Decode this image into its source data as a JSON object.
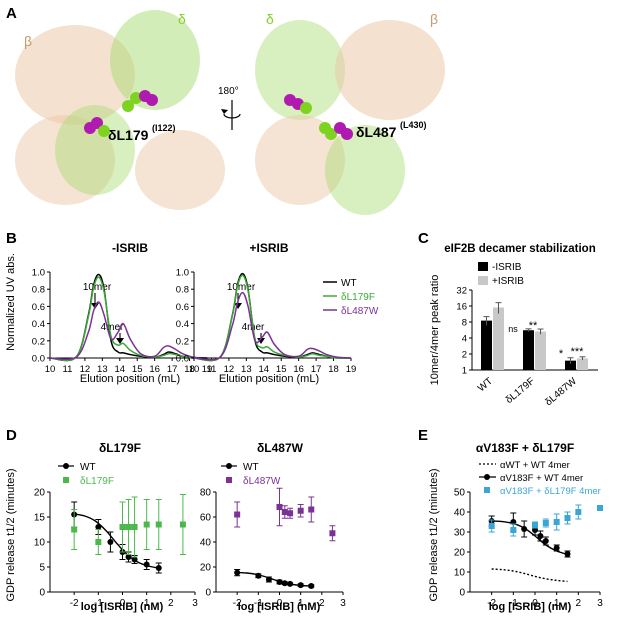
{
  "panels": {
    "A": "A",
    "B": "B",
    "C": "C",
    "D": "D",
    "E": "E"
  },
  "structure": {
    "left_beta": "β",
    "left_delta": "δ",
    "left_mut": "δL179",
    "left_mut_sup": "(I122)",
    "rotation": "180°",
    "right_delta": "δ",
    "right_beta": "β",
    "right_mut": "δL487",
    "right_mut_sup": "(L430)",
    "colors": {
      "beta": "#ebc9a8",
      "delta": "#a8db72",
      "sphere_green": "#7ed321",
      "sphere_purple": "#b01ab0"
    }
  },
  "chart_data": [
    {
      "id": "B-left",
      "type": "line",
      "title": "-ISRIB",
      "xlabel": "Elution position (mL)",
      "ylabel": "Normalized UV abs.",
      "xlim": [
        10,
        19
      ],
      "ylim": [
        0,
        1.0
      ],
      "xticks": [
        "10",
        "11",
        "12",
        "13",
        "14",
        "15",
        "16",
        "17",
        "18",
        "19"
      ],
      "yticks": [
        "0.0",
        "0.2",
        "0.4",
        "0.6",
        "0.8",
        "1.0"
      ],
      "annotations": [
        "10mer",
        "4mer"
      ],
      "series": [
        {
          "name": "WT",
          "color": "#000000",
          "x": [
            10,
            11.5,
            12.2,
            12.5,
            12.8,
            13.1,
            13.5,
            13.9,
            14.2,
            14.6,
            15.2,
            16.0,
            16.5,
            16.8,
            17.2,
            17.6,
            18.2,
            19
          ],
          "y": [
            0,
            0.01,
            0.5,
            0.85,
            0.97,
            0.8,
            0.2,
            0.07,
            0.06,
            0.04,
            0.02,
            0.01,
            0.04,
            0.07,
            0.05,
            0.02,
            0.0,
            0
          ]
        },
        {
          "name": "δL179F",
          "color": "#3aaa35",
          "x": [
            10,
            11.5,
            12.2,
            12.5,
            12.8,
            13.1,
            13.5,
            13.9,
            14.2,
            14.6,
            15.2,
            16.0,
            16.5,
            16.8,
            17.2,
            17.6,
            18.2,
            19
          ],
          "y": [
            0,
            0.01,
            0.48,
            0.82,
            0.94,
            0.77,
            0.25,
            0.15,
            0.17,
            0.09,
            0.03,
            0.01,
            0.03,
            0.05,
            0.04,
            0.02,
            0.0,
            0
          ]
        },
        {
          "name": "δL487W",
          "color": "#7b3294",
          "x": [
            10,
            11.5,
            12.2,
            12.5,
            12.8,
            13.1,
            13.5,
            13.9,
            14.2,
            14.6,
            15.2,
            16.0,
            16.5,
            16.8,
            17.2,
            17.6,
            18.2,
            19
          ],
          "y": [
            0,
            0.01,
            0.3,
            0.55,
            0.65,
            0.5,
            0.22,
            0.3,
            0.4,
            0.22,
            0.05,
            0.02,
            0.12,
            0.14,
            0.1,
            0.05,
            0.01,
            0
          ]
        }
      ]
    },
    {
      "id": "B-right",
      "type": "line",
      "title": "+ISRIB",
      "xlabel": "Elution position (mL)",
      "ylabel": "",
      "xlim": [
        10,
        19
      ],
      "ylim": [
        0,
        1.0
      ],
      "xticks": [
        "10",
        "11",
        "12",
        "13",
        "14",
        "15",
        "16",
        "17",
        "18",
        "19"
      ],
      "yticks": [
        "0.0",
        "0.2",
        "0.4",
        "0.6",
        "0.8",
        "1.0"
      ],
      "annotations": [
        "10mer",
        "4mer"
      ],
      "legend": [
        "WT",
        "δL179F",
        "δL487W"
      ],
      "series": [
        {
          "name": "WT",
          "color": "#000000",
          "x": [
            10,
            11.5,
            12.2,
            12.5,
            12.8,
            13.1,
            13.5,
            13.9,
            14.2,
            14.6,
            15.2,
            16.0,
            16.5,
            16.8,
            17.2,
            17.6,
            18.2,
            19
          ],
          "y": [
            0,
            0.01,
            0.5,
            0.86,
            0.98,
            0.8,
            0.2,
            0.07,
            0.06,
            0.04,
            0.02,
            0.01,
            0.04,
            0.06,
            0.04,
            0.02,
            0.0,
            0
          ]
        },
        {
          "name": "δL179F",
          "color": "#3aaa35",
          "x": [
            10,
            11.5,
            12.2,
            12.5,
            12.8,
            13.1,
            13.5,
            13.9,
            14.2,
            14.6,
            15.2,
            16.0,
            16.5,
            16.8,
            17.2,
            17.6,
            18.2,
            19
          ],
          "y": [
            0,
            0.01,
            0.49,
            0.84,
            0.96,
            0.78,
            0.22,
            0.12,
            0.13,
            0.07,
            0.03,
            0.01,
            0.03,
            0.05,
            0.03,
            0.02,
            0.0,
            0
          ]
        },
        {
          "name": "δL487W",
          "color": "#7b3294",
          "x": [
            10,
            11.5,
            12.2,
            12.5,
            12.8,
            13.1,
            13.5,
            13.9,
            14.2,
            14.6,
            15.2,
            16.0,
            16.5,
            16.8,
            17.2,
            17.6,
            18.2,
            19
          ],
          "y": [
            0,
            0.01,
            0.38,
            0.65,
            0.76,
            0.6,
            0.2,
            0.24,
            0.3,
            0.16,
            0.04,
            0.02,
            0.1,
            0.11,
            0.08,
            0.04,
            0.01,
            0
          ]
        }
      ]
    },
    {
      "id": "C",
      "type": "bar",
      "title": "eIF2B decamer stabilization",
      "ylabel": "10mer/4mer peak ratio",
      "yscale": "log2",
      "ylim": [
        1,
        32
      ],
      "yticks": [
        "1",
        "2",
        "4",
        "8",
        "16",
        "32"
      ],
      "categories": [
        "WT",
        "δL179F",
        "δL487W"
      ],
      "legend": [
        "-ISRIB",
        "+ISRIB"
      ],
      "series": [
        {
          "name": "-ISRIB",
          "color": "#000000",
          "values": [
            8.5,
            5.6,
            1.5
          ],
          "errors": [
            1.6,
            0.35,
            0.2
          ]
        },
        {
          "name": "+ISRIB",
          "color": "#c8c8c8",
          "values": [
            15.0,
            5.3,
            1.65
          ],
          "errors": [
            3.5,
            0.6,
            0.12
          ]
        }
      ],
      "significance": {
        "δL179F": [
          "ns",
          "**"
        ],
        "δL487W": [
          "*",
          "***"
        ]
      }
    },
    {
      "id": "D-left",
      "type": "scatter",
      "title": "δL179F",
      "xlabel": "log [ISRIB] (nM)",
      "ylabel": "GDP release t1/2 (minutes)",
      "xlim": [
        -3,
        3
      ],
      "ylim": [
        0,
        20
      ],
      "xticks": [
        "-2",
        "-1",
        "0",
        "1",
        "2",
        "3"
      ],
      "yticks": [
        "0",
        "5",
        "10",
        "15",
        "20"
      ],
      "series": [
        {
          "name": "WT",
          "color": "#000000",
          "marker": "circle",
          "x": [
            -2,
            -1,
            -0.5,
            0,
            0.25,
            0.5,
            1,
            1.5
          ],
          "y": [
            15.5,
            13.0,
            10.0,
            8.0,
            7.0,
            6.5,
            5.5,
            4.8
          ],
          "err": [
            2.5,
            1.5,
            2.0,
            1.5,
            1.0,
            0.8,
            1.0,
            1.0
          ],
          "fit": [
            15.6,
            15.2,
            14.2,
            12.3,
            9.8,
            7.5,
            6.0,
            5.2,
            4.8
          ]
        },
        {
          "name": "δL179F",
          "color": "#4cb84c",
          "marker": "square",
          "x": [
            -2,
            -1,
            0,
            0.25,
            0.5,
            1,
            1.5,
            2.5
          ],
          "y": [
            12.5,
            10.0,
            13.0,
            13.0,
            13.0,
            13.5,
            13.5,
            13.5
          ],
          "err": [
            4.0,
            2.5,
            5.0,
            5.5,
            6.0,
            5.0,
            5.0,
            6.0
          ]
        }
      ]
    },
    {
      "id": "D-right",
      "type": "scatter",
      "title": "δL487W",
      "xlabel": "log [ISRIB] (nM)",
      "ylabel": "",
      "xlim": [
        -3,
        3
      ],
      "ylim": [
        0,
        80
      ],
      "xticks": [
        "-2",
        "-1",
        "0",
        "1",
        "2",
        "3"
      ],
      "yticks": [
        "0",
        "20",
        "40",
        "60",
        "80"
      ],
      "series": [
        {
          "name": "WT",
          "color": "#000000",
          "marker": "circle",
          "x": [
            -2,
            -1,
            -0.5,
            0,
            0.25,
            0.5,
            1,
            1.5
          ],
          "y": [
            15.5,
            13.0,
            10.0,
            8.0,
            7.0,
            6.5,
            5.5,
            4.8
          ],
          "err": [
            2.5,
            1.5,
            2.0,
            1.5,
            1.0,
            0.8,
            1.0,
            1.0
          ],
          "fit": [
            15.6,
            15.2,
            14.2,
            12.3,
            9.8,
            7.5,
            6.0,
            5.2,
            4.8
          ]
        },
        {
          "name": "δL487W",
          "color": "#7b3294",
          "marker": "square",
          "x": [
            -2,
            0,
            0.25,
            0.5,
            1,
            1.5,
            2.5
          ],
          "y": [
            62,
            68,
            64,
            63,
            65,
            66,
            47
          ],
          "err": [
            10,
            15,
            5,
            4,
            5,
            10,
            6
          ]
        }
      ]
    },
    {
      "id": "E",
      "type": "scatter",
      "title": "αV183F + δL179F",
      "xlabel": "log [ISRIB] (nM)",
      "ylabel": "GDP release t1/2 (minutes)",
      "xlim": [
        -3,
        3
      ],
      "ylim": [
        0,
        50
      ],
      "xticks": [
        "-2",
        "-1",
        "0",
        "1",
        "2",
        "3"
      ],
      "yticks": [
        "0",
        "10",
        "20",
        "30",
        "40",
        "50"
      ],
      "series": [
        {
          "name": "αWT + WT 4mer",
          "color": "#000000",
          "style": "dashed",
          "fit_x": [
            -2,
            -1.5,
            -1,
            -0.5,
            0,
            0.5,
            1,
            1.5
          ],
          "fit": [
            11.5,
            11.2,
            10.5,
            9.3,
            7.8,
            6.6,
            5.8,
            5.3
          ]
        },
        {
          "name": "αV183F + WT 4mer",
          "color": "#000000",
          "marker": "circle",
          "x": [
            -2,
            -1,
            -0.5,
            0,
            0.25,
            0.5,
            1,
            1.5
          ],
          "y": [
            35.5,
            35.0,
            31.5,
            31.0,
            28.0,
            25.5,
            22.0,
            19.0
          ],
          "err": [
            2.5,
            4.5,
            4.0,
            2.5,
            2.5,
            2.0,
            1.5,
            1.5
          ],
          "fit": [
            35.5,
            35.2,
            34.2,
            32.0,
            28.0,
            23.5,
            20.5,
            18.8
          ]
        },
        {
          "name": "αV183F + δL179F 4mer",
          "color": "#3aa6d6",
          "marker": "square",
          "x": [
            -2,
            -1,
            0,
            0.5,
            1,
            1.5,
            2,
            3
          ],
          "y": [
            33.0,
            31.0,
            33.5,
            34.5,
            35.0,
            37.0,
            40.0,
            42.0
          ],
          "err": [
            3.0,
            3.0,
            1.5,
            2.0,
            4.0,
            3.0,
            3.5,
            1.0
          ]
        }
      ]
    }
  ]
}
